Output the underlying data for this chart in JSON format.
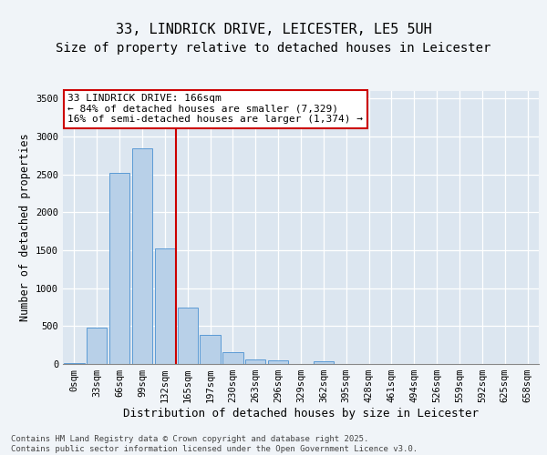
{
  "title_line1": "33, LINDRICK DRIVE, LEICESTER, LE5 5UH",
  "title_line2": "Size of property relative to detached houses in Leicester",
  "xlabel": "Distribution of detached houses by size in Leicester",
  "ylabel": "Number of detached properties",
  "bar_labels": [
    "0sqm",
    "33sqm",
    "66sqm",
    "99sqm",
    "132sqm",
    "165sqm",
    "197sqm",
    "230sqm",
    "263sqm",
    "296sqm",
    "329sqm",
    "362sqm",
    "395sqm",
    "428sqm",
    "461sqm",
    "494sqm",
    "526sqm",
    "559sqm",
    "592sqm",
    "625sqm",
    "658sqm"
  ],
  "bar_values": [
    10,
    480,
    2520,
    2840,
    1530,
    745,
    380,
    155,
    65,
    45,
    0,
    40,
    0,
    0,
    0,
    0,
    0,
    0,
    0,
    0,
    0
  ],
  "bar_color": "#b8d0e8",
  "bar_edge_color": "#5b9bd5",
  "background_color": "#dce6f0",
  "grid_color": "#ffffff",
  "vline_color": "#cc0000",
  "vline_position": 4.5,
  "ylim": [
    0,
    3600
  ],
  "yticks": [
    0,
    500,
    1000,
    1500,
    2000,
    2500,
    3000,
    3500
  ],
  "annotation_text": "33 LINDRICK DRIVE: 166sqm\n← 84% of detached houses are smaller (7,329)\n16% of semi-detached houses are larger (1,374) →",
  "annotation_border_color": "#cc0000",
  "footnote": "Contains HM Land Registry data © Crown copyright and database right 2025.\nContains public sector information licensed under the Open Government Licence v3.0.",
  "title_fontsize": 11,
  "subtitle_fontsize": 10,
  "ylabel_fontsize": 8.5,
  "xlabel_fontsize": 9,
  "tick_fontsize": 7.5,
  "annot_fontsize": 8,
  "footnote_fontsize": 6.5
}
